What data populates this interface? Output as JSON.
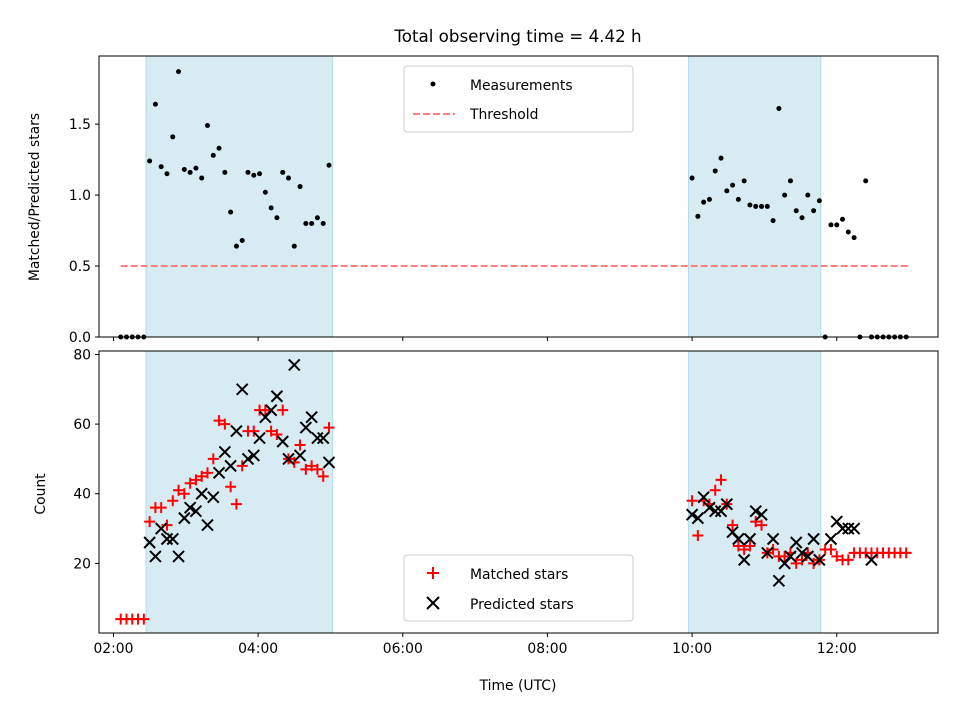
{
  "chart_data": [
    {
      "type": "scatter",
      "title": "Total observing time = 4.42 h",
      "ylabel": "Matched/Predicted stars",
      "xlabel": "",
      "xlim": [
        1.8,
        13.4
      ],
      "ylim": [
        0,
        1.98
      ],
      "yticks": [
        "0.0",
        "0.5",
        "1.0",
        "1.5"
      ],
      "ytick_values": [
        0,
        0.5,
        1.0,
        1.5
      ],
      "xticks_values": [
        2,
        4,
        6,
        8,
        10,
        12
      ],
      "grid": false,
      "legend": "upper center",
      "shaded_intervals": [
        [
          2.45,
          5.03
        ],
        [
          9.95,
          11.78
        ]
      ],
      "series": [
        {
          "name": "Measurements",
          "marker": "dot",
          "color": "#000000",
          "x": [
            2.1,
            2.18,
            2.26,
            2.34,
            2.42,
            2.5,
            2.58,
            2.66,
            2.74,
            2.82,
            2.9,
            2.98,
            3.06,
            3.14,
            3.22,
            3.3,
            3.38,
            3.46,
            3.54,
            3.62,
            3.7,
            3.78,
            3.86,
            3.94,
            4.02,
            4.1,
            4.18,
            4.26,
            4.34,
            4.42,
            4.5,
            4.58,
            4.66,
            4.74,
            4.82,
            4.9,
            4.98,
            10.0,
            10.08,
            10.16,
            10.24,
            10.32,
            10.4,
            10.48,
            10.56,
            10.64,
            10.72,
            10.8,
            10.88,
            10.96,
            11.04,
            11.12,
            11.2,
            11.28,
            11.36,
            11.44,
            11.52,
            11.6,
            11.68,
            11.76,
            11.84,
            11.92,
            12.0,
            12.08,
            12.16,
            12.24,
            12.32,
            12.4,
            12.48,
            12.56,
            12.64,
            12.72,
            12.8,
            12.88,
            12.96
          ],
          "y": [
            0,
            0,
            0,
            0,
            0,
            1.24,
            1.64,
            1.2,
            1.15,
            1.41,
            1.87,
            1.18,
            1.16,
            1.19,
            1.12,
            1.49,
            1.28,
            1.33,
            1.16,
            0.88,
            0.64,
            0.68,
            1.16,
            1.14,
            1.15,
            1.02,
            0.91,
            0.84,
            1.16,
            1.12,
            0.64,
            1.06,
            0.8,
            0.8,
            0.84,
            0.8,
            1.21,
            1.12,
            0.85,
            0.95,
            0.97,
            1.17,
            1.26,
            1.03,
            1.07,
            0.97,
            1.1,
            0.93,
            0.92,
            0.92,
            0.92,
            0.82,
            1.61,
            1.0,
            1.1,
            0.89,
            0.84,
            1.0,
            0.89,
            0.96,
            0.0,
            0.79,
            0.79,
            0.83,
            0.74,
            0.7,
            0.0,
            1.1,
            0,
            0,
            0,
            0,
            0,
            0,
            0
          ]
        },
        {
          "name": "Threshold",
          "marker": "dashed-line",
          "color": "#ff7f7f",
          "x": [
            2.1,
            13.0
          ],
          "y": [
            0.5,
            0.5
          ]
        }
      ]
    },
    {
      "type": "scatter",
      "title": "",
      "ylabel": "Count",
      "xlabel": "Time (UTC)",
      "xlim": [
        1.8,
        13.4
      ],
      "ylim": [
        0,
        81
      ],
      "yticks": [
        "20",
        "40",
        "60",
        "80"
      ],
      "ytick_values": [
        20,
        40,
        60,
        80
      ],
      "xticks": [
        "02:00",
        "04:00",
        "06:00",
        "08:00",
        "10:00",
        "12:00"
      ],
      "xticks_values": [
        2,
        4,
        6,
        8,
        10,
        12
      ],
      "grid": false,
      "legend": "lower center",
      "shaded_intervals": [
        [
          2.45,
          5.03
        ],
        [
          9.95,
          11.78
        ]
      ],
      "series": [
        {
          "name": "Matched stars",
          "marker": "plus",
          "color": "#ff0000",
          "x": [
            2.1,
            2.18,
            2.26,
            2.34,
            2.42,
            2.5,
            2.58,
            2.66,
            2.74,
            2.82,
            2.9,
            2.98,
            3.06,
            3.14,
            3.22,
            3.3,
            3.38,
            3.46,
            3.54,
            3.62,
            3.7,
            3.78,
            3.86,
            3.94,
            4.02,
            4.1,
            4.18,
            4.26,
            4.34,
            4.42,
            4.5,
            4.58,
            4.66,
            4.74,
            4.82,
            4.9,
            4.98,
            10.0,
            10.08,
            10.16,
            10.24,
            10.32,
            10.4,
            10.48,
            10.56,
            10.64,
            10.72,
            10.8,
            10.88,
            10.96,
            11.04,
            11.12,
            11.2,
            11.28,
            11.36,
            11.44,
            11.52,
            11.6,
            11.68,
            11.76,
            11.84,
            11.92,
            12.0,
            12.08,
            12.16,
            12.24,
            12.32,
            12.4,
            12.48,
            12.56,
            12.64,
            12.72,
            12.8,
            12.88,
            12.96
          ],
          "y": [
            4,
            4,
            4,
            4,
            4,
            32,
            36,
            36,
            31,
            38,
            41,
            40,
            43,
            44,
            45,
            46,
            50,
            61,
            60,
            42,
            37,
            48,
            58,
            58,
            64,
            64,
            58,
            57,
            64,
            50,
            49,
            54,
            47,
            48,
            47,
            45,
            59,
            38,
            28,
            38,
            37,
            41,
            44,
            37,
            31,
            25,
            24,
            25,
            32,
            31,
            23,
            24,
            22,
            22,
            23,
            20,
            21,
            23,
            20,
            21,
            24,
            24,
            22,
            21,
            21,
            23,
            23,
            23,
            23,
            23,
            23,
            23,
            23,
            23,
            23
          ]
        },
        {
          "name": "Predicted stars",
          "marker": "x",
          "color": "#000000",
          "x": [
            2.5,
            2.58,
            2.66,
            2.74,
            2.82,
            2.9,
            2.98,
            3.06,
            3.14,
            3.22,
            3.3,
            3.38,
            3.46,
            3.54,
            3.62,
            3.7,
            3.78,
            3.86,
            3.94,
            4.02,
            4.1,
            4.18,
            4.26,
            4.34,
            4.42,
            4.5,
            4.58,
            4.66,
            4.74,
            4.82,
            4.9,
            4.98,
            10.0,
            10.08,
            10.16,
            10.24,
            10.32,
            10.4,
            10.48,
            10.56,
            10.64,
            10.72,
            10.8,
            10.88,
            10.96,
            11.04,
            11.12,
            11.2,
            11.28,
            11.36,
            11.44,
            11.52,
            11.6,
            11.68,
            11.76,
            11.92,
            12.0,
            12.08,
            12.16,
            12.24,
            12.48
          ],
          "y": [
            26,
            22,
            30,
            27,
            27,
            22,
            33,
            36,
            35,
            40,
            31,
            39,
            46,
            52,
            48,
            58,
            70,
            50,
            51,
            56,
            62,
            64,
            68,
            55,
            50,
            77,
            51,
            59,
            62,
            56,
            56,
            49,
            34,
            33,
            39,
            36,
            35,
            35,
            37,
            29,
            27,
            21,
            27,
            35,
            34,
            23,
            27,
            15,
            20,
            22,
            26,
            23,
            22,
            27,
            21,
            27,
            32,
            30,
            30,
            30,
            21
          ]
        }
      ]
    }
  ]
}
